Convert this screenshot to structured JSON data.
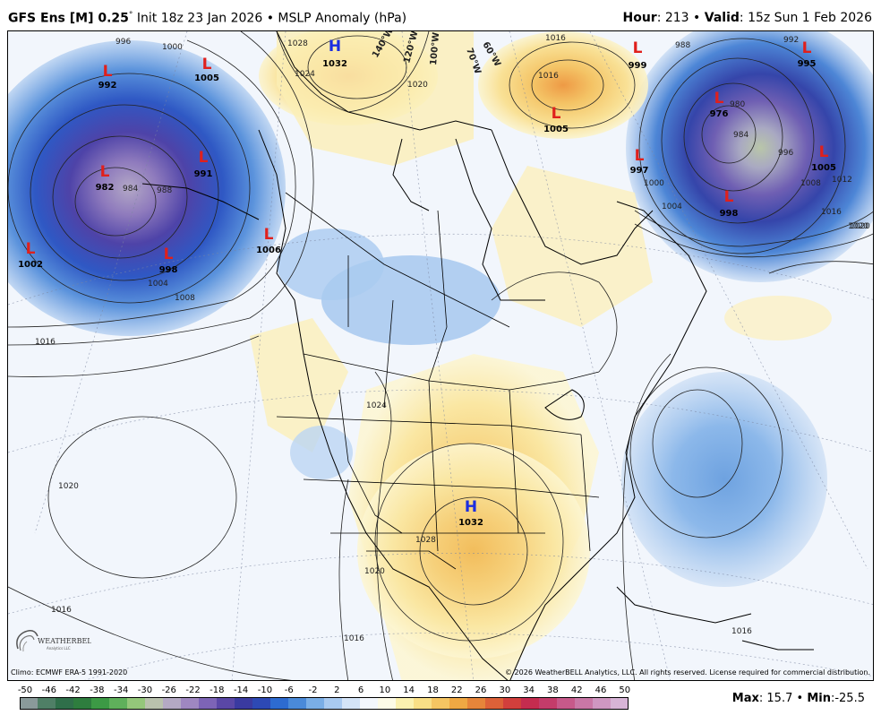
{
  "header": {
    "model": "GFS Ens [M] 0.25",
    "degree": "°",
    "init": "Init 18z 23 Jan 2026",
    "bullet": "•",
    "field": "MSLP Anomaly (hPa)",
    "hour_label": "Hour",
    "hour_value": ": 213",
    "valid_label": "Valid",
    "valid_value": ": 15z Sun 1 Feb 2026"
  },
  "footer": {
    "climo": "Climo: ECMWF ERA-5 1991-2020",
    "copyright": "© 2026 WeatherBELL Analytics, LLC. All rights reserved. License required for commercial distribution.",
    "max_label": "Max",
    "max_value": ": 15.7",
    "min_label": "Min",
    "min_value": ":-25.5",
    "logo_text": "WEATHERBELL",
    "logo_sub": "Analytics LLC"
  },
  "colorbar": {
    "ticks": [
      "-50",
      "-46",
      "-42",
      "-38",
      "-34",
      "-30",
      "-26",
      "-22",
      "-18",
      "-14",
      "-10",
      "-6",
      "-2",
      "2",
      "6",
      "10",
      "14",
      "18",
      "22",
      "26",
      "30",
      "34",
      "38",
      "42",
      "46",
      "50"
    ],
    "colors": [
      "#8a9a9a",
      "#4f7f66",
      "#2f6f4a",
      "#2e7d3e",
      "#3c9a45",
      "#5fb05b",
      "#94c77a",
      "#b9c2ad",
      "#b4a9c4",
      "#9f87c1",
      "#7d64b6",
      "#5a47a6",
      "#3a3aa0",
      "#2d49b4",
      "#2d6bd0",
      "#4a8ad9",
      "#7aaee6",
      "#a9caf0",
      "#d4e4f7",
      "#f3f7fd",
      "#fdfbe7",
      "#fbf1b0",
      "#f9df86",
      "#f5c562",
      "#efa843",
      "#e6853a",
      "#dd6138",
      "#d23f3c",
      "#c52c4f",
      "#c43c6a",
      "#c7598a",
      "#c977a6",
      "#cf97c1",
      "#d7b4d6"
    ]
  },
  "map_labels": {
    "highs": [
      {
        "sym": "H",
        "value": "1032"
      },
      {
        "sym": "H",
        "value": "1032"
      }
    ],
    "lows": [
      {
        "sym": "L",
        "value": "992"
      },
      {
        "sym": "L",
        "value": "1005"
      },
      {
        "sym": "L",
        "value": "982"
      },
      {
        "sym": "L",
        "value": "991"
      },
      {
        "sym": "L",
        "value": "1002"
      },
      {
        "sym": "L",
        "value": "998"
      },
      {
        "sym": "L",
        "value": "1006"
      },
      {
        "sym": "L",
        "value": "999"
      },
      {
        "sym": "L",
        "value": "1005"
      },
      {
        "sym": "L",
        "value": "997"
      },
      {
        "sym": "L",
        "value": "976"
      },
      {
        "sym": "L",
        "value": "995"
      },
      {
        "sym": "L",
        "value": "1005"
      },
      {
        "sym": "L",
        "value": "998"
      }
    ],
    "isobars": [
      "996",
      "1000",
      "1028",
      "1024",
      "1020",
      "1016",
      "1016",
      "1000",
      "1004",
      "988",
      "992",
      "980",
      "984",
      "996",
      "1008",
      "1012",
      "1016",
      "1020",
      "984",
      "988",
      "1004",
      "1008",
      "1016",
      "1020",
      "1024",
      "1028",
      "1020",
      "1016",
      "1016",
      "1016",
      "1020"
    ],
    "longitudes": [
      "140°W",
      "120°W",
      "100°W",
      "70°W",
      "60°W"
    ]
  }
}
